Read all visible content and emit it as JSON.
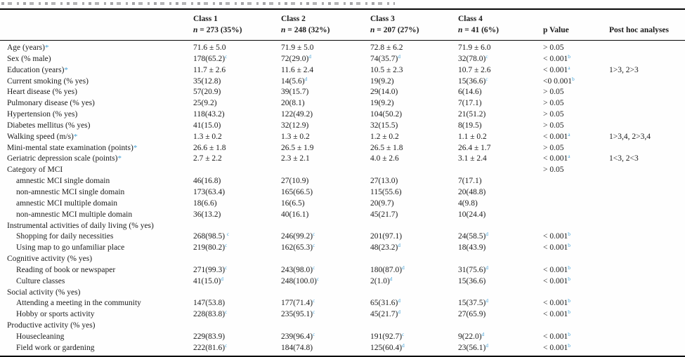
{
  "colors": {
    "text": "#1b1b1b",
    "accent_blue": "#44a1d6",
    "rule": "#060606",
    "background": "#fefefe"
  },
  "caption": {
    "note": "caption line cut off at top edge of screenshot"
  },
  "header": {
    "classes": [
      {
        "label": "Class 1",
        "n": "n",
        "count_rest": " = 273 (35%)"
      },
      {
        "label": "Class 2",
        "n": "n",
        "count_rest": " = 248 (32%)"
      },
      {
        "label": "Class 3",
        "n": "n",
        "count_rest": " = 207 (27%)"
      },
      {
        "label": "Class 4",
        "n": "n",
        "count_rest": " = 41 (6%)"
      }
    ],
    "p_value": "p Value",
    "post_hoc": "Post hoc analyses"
  },
  "rows": [
    {
      "label": "Age (years)",
      "star": true,
      "indent": 0,
      "c": [
        {
          "t": "71.6 ± 5.0",
          "s": ""
        },
        {
          "t": "71.9 ± 5.0",
          "s": ""
        },
        {
          "t": "72.8 ± 6.2",
          "s": ""
        },
        {
          "t": "71.9 ± 6.0",
          "s": ""
        }
      ],
      "p": {
        "t": "> 0.05",
        "s": ""
      },
      "post": ""
    },
    {
      "label": "Sex (% male)",
      "star": false,
      "indent": 0,
      "c": [
        {
          "t": "178(65.2)",
          "s": "c"
        },
        {
          "t": "72(29.0)",
          "s": "d"
        },
        {
          "t": "74(35.7)",
          "s": "d"
        },
        {
          "t": "32(78.0)",
          "s": "c"
        }
      ],
      "p": {
        "t": "< 0.001",
        "s": "b"
      },
      "post": ""
    },
    {
      "label": "Education (years)",
      "star": true,
      "indent": 0,
      "c": [
        {
          "t": "11.7 ± 2.6",
          "s": ""
        },
        {
          "t": "11.6 ± 2.4",
          "s": ""
        },
        {
          "t": "10.5 ± 2.3",
          "s": ""
        },
        {
          "t": "10.7 ± 2.6",
          "s": ""
        }
      ],
      "p": {
        "t": "< 0.001",
        "s": "a"
      },
      "post": "1>3, 2>3"
    },
    {
      "label": "Current smoking (% yes)",
      "star": false,
      "indent": 0,
      "c": [
        {
          "t": "35(12.8)",
          "s": ""
        },
        {
          "t": "14(5.6)",
          "s": "d"
        },
        {
          "t": "19(9.2)",
          "s": ""
        },
        {
          "t": "15(36.6)",
          "s": "c"
        }
      ],
      "p": {
        "t": "<0 0.001",
        "s": "b"
      },
      "post": ""
    },
    {
      "label": "Heart disease (% yes)",
      "star": false,
      "indent": 0,
      "c": [
        {
          "t": "57(20.9)",
          "s": ""
        },
        {
          "t": "39(15.7)",
          "s": ""
        },
        {
          "t": "29(14.0)",
          "s": ""
        },
        {
          "t": "6(14.6)",
          "s": ""
        }
      ],
      "p": {
        "t": "> 0.05",
        "s": ""
      },
      "post": ""
    },
    {
      "label": "Pulmonary disease (% yes)",
      "star": false,
      "indent": 0,
      "c": [
        {
          "t": "25(9.2)",
          "s": ""
        },
        {
          "t": "20(8.1)",
          "s": ""
        },
        {
          "t": "19(9.2)",
          "s": ""
        },
        {
          "t": "7(17.1)",
          "s": ""
        }
      ],
      "p": {
        "t": "> 0.05",
        "s": ""
      },
      "post": ""
    },
    {
      "label": "Hypertension (% yes)",
      "star": false,
      "indent": 0,
      "c": [
        {
          "t": "118(43.2)",
          "s": ""
        },
        {
          "t": "122(49.2)",
          "s": ""
        },
        {
          "t": "104(50.2)",
          "s": ""
        },
        {
          "t": "21(51.2)",
          "s": ""
        }
      ],
      "p": {
        "t": "> 0.05",
        "s": ""
      },
      "post": ""
    },
    {
      "label": "Diabetes mellitus (% yes)",
      "star": false,
      "indent": 0,
      "c": [
        {
          "t": "41(15.0)",
          "s": ""
        },
        {
          "t": "32(12.9)",
          "s": ""
        },
        {
          "t": "32(15.5)",
          "s": ""
        },
        {
          "t": "8(19.5)",
          "s": ""
        }
      ],
      "p": {
        "t": "> 0.05",
        "s": ""
      },
      "post": ""
    },
    {
      "label": "Walking speed (m/s)",
      "star": true,
      "indent": 0,
      "c": [
        {
          "t": "1.3 ± 0.2",
          "s": ""
        },
        {
          "t": "1.3 ± 0.2",
          "s": ""
        },
        {
          "t": "1.2 ± 0.2",
          "s": ""
        },
        {
          "t": "1.1 ± 0.2",
          "s": ""
        }
      ],
      "p": {
        "t": "< 0.001",
        "s": "a"
      },
      "post": "1>3,4, 2>3,4"
    },
    {
      "label": "Mini-mental state examination (points)",
      "star": true,
      "indent": 0,
      "c": [
        {
          "t": "26.6 ± 1.8",
          "s": ""
        },
        {
          "t": "26.5 ± 1.9",
          "s": ""
        },
        {
          "t": "26.5 ± 1.8",
          "s": ""
        },
        {
          "t": "26.4 ± 1.7",
          "s": ""
        }
      ],
      "p": {
        "t": "> 0.05",
        "s": ""
      },
      "post": ""
    },
    {
      "label": "Geriatric depression scale (points)",
      "star": true,
      "indent": 0,
      "c": [
        {
          "t": "2.7 ± 2.2",
          "s": ""
        },
        {
          "t": "2.3 ± 2.1",
          "s": ""
        },
        {
          "t": "4.0 ± 2.6",
          "s": ""
        },
        {
          "t": "3.1 ± 2.4",
          "s": ""
        }
      ],
      "p": {
        "t": "< 0.001",
        "s": "a"
      },
      "post": "1<3, 2<3"
    },
    {
      "label": "Category of MCI",
      "star": false,
      "indent": 0,
      "c": [
        {
          "t": "",
          "s": ""
        },
        {
          "t": "",
          "s": ""
        },
        {
          "t": "",
          "s": ""
        },
        {
          "t": "",
          "s": ""
        }
      ],
      "p": {
        "t": "> 0.05",
        "s": ""
      },
      "post": ""
    },
    {
      "label": "amnestic MCI single domain",
      "star": false,
      "indent": 1,
      "c": [
        {
          "t": "46(16.8)",
          "s": ""
        },
        {
          "t": "27(10.9)",
          "s": ""
        },
        {
          "t": "27(13.0)",
          "s": ""
        },
        {
          "t": "7(17.1)",
          "s": ""
        }
      ],
      "p": {
        "t": "",
        "s": ""
      },
      "post": ""
    },
    {
      "label": "non-amnestic MCI single domain",
      "star": false,
      "indent": 1,
      "c": [
        {
          "t": "173(63.4)",
          "s": ""
        },
        {
          "t": "165(66.5)",
          "s": ""
        },
        {
          "t": "115(55.6)",
          "s": ""
        },
        {
          "t": "20(48.8)",
          "s": ""
        }
      ],
      "p": {
        "t": "",
        "s": ""
      },
      "post": ""
    },
    {
      "label": "amnestic MCI multiple domain",
      "star": false,
      "indent": 1,
      "c": [
        {
          "t": "18(6.6)",
          "s": ""
        },
        {
          "t": "16(6.5)",
          "s": ""
        },
        {
          "t": "20(9.7)",
          "s": ""
        },
        {
          "t": "4(9.8)",
          "s": ""
        }
      ],
      "p": {
        "t": "",
        "s": ""
      },
      "post": ""
    },
    {
      "label": "non-amnestic MCI multiple domain",
      "star": false,
      "indent": 1,
      "c": [
        {
          "t": "36(13.2)",
          "s": ""
        },
        {
          "t": "40(16.1)",
          "s": ""
        },
        {
          "t": "45(21.7)",
          "s": ""
        },
        {
          "t": "10(24.4)",
          "s": ""
        }
      ],
      "p": {
        "t": "",
        "s": ""
      },
      "post": ""
    },
    {
      "label": "Instrumental activities of daily living (% yes)",
      "star": false,
      "indent": 0,
      "c": [
        {
          "t": "",
          "s": ""
        },
        {
          "t": "",
          "s": ""
        },
        {
          "t": "",
          "s": ""
        },
        {
          "t": "",
          "s": ""
        }
      ],
      "p": {
        "t": "",
        "s": ""
      },
      "post": ""
    },
    {
      "label": "Shopping for daily necessities",
      "star": false,
      "indent": 1,
      "c": [
        {
          "t": "268(98.5) ",
          "s": "c"
        },
        {
          "t": "246(99.2)",
          "s": "c"
        },
        {
          "t": "201(97.1)",
          "s": ""
        },
        {
          "t": "24(58.5)",
          "s": "d"
        }
      ],
      "p": {
        "t": "< 0.001",
        "s": "b"
      },
      "post": ""
    },
    {
      "label": "Using map to go unfamiliar place",
      "star": false,
      "indent": 1,
      "c": [
        {
          "t": "219(80.2)",
          "s": "c"
        },
        {
          "t": "162(65.3)",
          "s": "c"
        },
        {
          "t": "48(23.2)",
          "s": "d"
        },
        {
          "t": "18(43.9)",
          "s": ""
        }
      ],
      "p": {
        "t": "< 0.001",
        "s": "b"
      },
      "post": ""
    },
    {
      "label": "Cognitive activity (% yes)",
      "star": false,
      "indent": 0,
      "c": [
        {
          "t": "",
          "s": ""
        },
        {
          "t": "",
          "s": ""
        },
        {
          "t": "",
          "s": ""
        },
        {
          "t": "",
          "s": ""
        }
      ],
      "p": {
        "t": "",
        "s": ""
      },
      "post": ""
    },
    {
      "label": "Reading of book or newspaper",
      "star": false,
      "indent": 1,
      "c": [
        {
          "t": "271(99.3)",
          "s": "c"
        },
        {
          "t": "243(98.0)",
          "s": "c"
        },
        {
          "t": "180(87.0)",
          "s": "d"
        },
        {
          "t": "31(75.6)",
          "s": "d"
        }
      ],
      "p": {
        "t": "< 0.001",
        "s": "b"
      },
      "post": ""
    },
    {
      "label": "Culture classes",
      "star": false,
      "indent": 1,
      "c": [
        {
          "t": "41(15.0)",
          "s": "d"
        },
        {
          "t": "248(100.0)",
          "s": "c"
        },
        {
          "t": "2(1.0)",
          "s": "d"
        },
        {
          "t": "15(36.6)",
          "s": ""
        }
      ],
      "p": {
        "t": "< 0.001",
        "s": "b"
      },
      "post": ""
    },
    {
      "label": "Social activity (% yes)",
      "star": false,
      "indent": 0,
      "c": [
        {
          "t": "",
          "s": ""
        },
        {
          "t": "",
          "s": ""
        },
        {
          "t": "",
          "s": ""
        },
        {
          "t": "",
          "s": ""
        }
      ],
      "p": {
        "t": "",
        "s": ""
      },
      "post": ""
    },
    {
      "label": "Attending a meeting in the community",
      "star": false,
      "indent": 1,
      "c": [
        {
          "t": "147(53.8)",
          "s": ""
        },
        {
          "t": "177(71.4)",
          "s": "c"
        },
        {
          "t": "65(31.6)",
          "s": "d"
        },
        {
          "t": "15(37.5)",
          "s": "d"
        }
      ],
      "p": {
        "t": "< 0.001",
        "s": "b"
      },
      "post": ""
    },
    {
      "label": "Hobby or sports activity",
      "star": false,
      "indent": 1,
      "c": [
        {
          "t": "228(83.8)",
          "s": "c"
        },
        {
          "t": "235(95.1)",
          "s": "c"
        },
        {
          "t": "45(21.7)",
          "s": "d"
        },
        {
          "t": "27(65.9)",
          "s": ""
        }
      ],
      "p": {
        "t": "< 0.001",
        "s": "b"
      },
      "post": ""
    },
    {
      "label": "Productive activity (% yes)",
      "star": false,
      "indent": 0,
      "c": [
        {
          "t": "",
          "s": ""
        },
        {
          "t": "",
          "s": ""
        },
        {
          "t": "",
          "s": ""
        },
        {
          "t": "",
          "s": ""
        }
      ],
      "p": {
        "t": "",
        "s": ""
      },
      "post": ""
    },
    {
      "label": "Housecleaning",
      "star": false,
      "indent": 1,
      "c": [
        {
          "t": "229(83.9)",
          "s": ""
        },
        {
          "t": "239(96.4)",
          "s": "c"
        },
        {
          "t": "191(92.7)",
          "s": "c"
        },
        {
          "t": "9(22.0)",
          "s": "d"
        }
      ],
      "p": {
        "t": "< 0.001",
        "s": "b"
      },
      "post": ""
    },
    {
      "label": "Field work or gardening",
      "star": false,
      "indent": 1,
      "c": [
        {
          "t": "222(81.6)",
          "s": "c"
        },
        {
          "t": "184(74.8)",
          "s": ""
        },
        {
          "t": "125(60.4)",
          "s": "d"
        },
        {
          "t": "23(56.1)",
          "s": "d"
        }
      ],
      "p": {
        "t": "< 0.001",
        "s": "b"
      },
      "post": ""
    }
  ]
}
